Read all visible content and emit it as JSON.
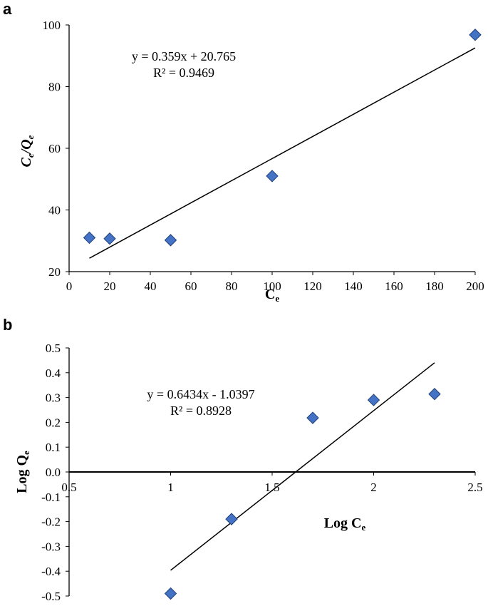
{
  "chart_data": [
    {
      "panel": "a",
      "type": "scatter",
      "title": "",
      "xlabel": "Ce",
      "xlabel_main": "C",
      "xlabel_sub": "e",
      "ylabel": "Ce/Qe",
      "ylabel_parts": [
        "C",
        "e",
        "/Q",
        "e"
      ],
      "xlim": [
        0,
        200
      ],
      "ylim": [
        20,
        100
      ],
      "xticks": [
        0,
        20,
        40,
        60,
        80,
        100,
        120,
        140,
        160,
        180,
        200
      ],
      "yticks": [
        20,
        40,
        60,
        80,
        100
      ],
      "points": [
        {
          "x": 10,
          "y": 31
        },
        {
          "x": 20,
          "y": 30.7
        },
        {
          "x": 50,
          "y": 30.2
        },
        {
          "x": 100,
          "y": 51
        },
        {
          "x": 200,
          "y": 96.8
        }
      ],
      "trendline": {
        "slope": 0.359,
        "intercept": 20.765,
        "x_range": [
          10,
          200
        ]
      },
      "equation": "y = 0.359x + 20.765",
      "r2": "R² = 0.9469",
      "marker_color": "#4472C4"
    },
    {
      "panel": "b",
      "type": "scatter",
      "title": "",
      "xlabel": "Log Ce",
      "xlabel_main": "Log C",
      "xlabel_sub": "e",
      "ylabel": "Log Qe",
      "ylabel_main": "Log Q",
      "ylabel_sub": "e",
      "xlim": [
        0.5,
        2.5
      ],
      "ylim": [
        -0.5,
        0.5
      ],
      "xticks": [
        0.5,
        1,
        1.5,
        2,
        2.5
      ],
      "xtick_labels": [
        "0.5",
        "1",
        "1.5",
        "2",
        "2.5"
      ],
      "yticks": [
        0.5,
        0.4,
        0.3,
        0.2,
        0.1,
        0.0,
        -0.1,
        -0.2,
        -0.3,
        -0.4,
        -0.5
      ],
      "ytick_labels": [
        "0.5",
        "0.4",
        "0.3",
        "0.2",
        "0.1",
        "0.0",
        "-0.1",
        "-0.2",
        "-0.3",
        "-0.4",
        "-0.5"
      ],
      "points": [
        {
          "x": 1.0,
          "y": -0.49
        },
        {
          "x": 1.3,
          "y": -0.19
        },
        {
          "x": 1.7,
          "y": 0.218
        },
        {
          "x": 2.0,
          "y": 0.29
        },
        {
          "x": 2.3,
          "y": 0.314
        }
      ],
      "trendline": {
        "slope": 0.6434,
        "intercept": -1.0397,
        "x_range": [
          1.0,
          2.3
        ]
      },
      "equation": "y = 0.6434x - 1.0397",
      "r2": "R² = 0.8928",
      "marker_color": "#4472C4"
    }
  ]
}
